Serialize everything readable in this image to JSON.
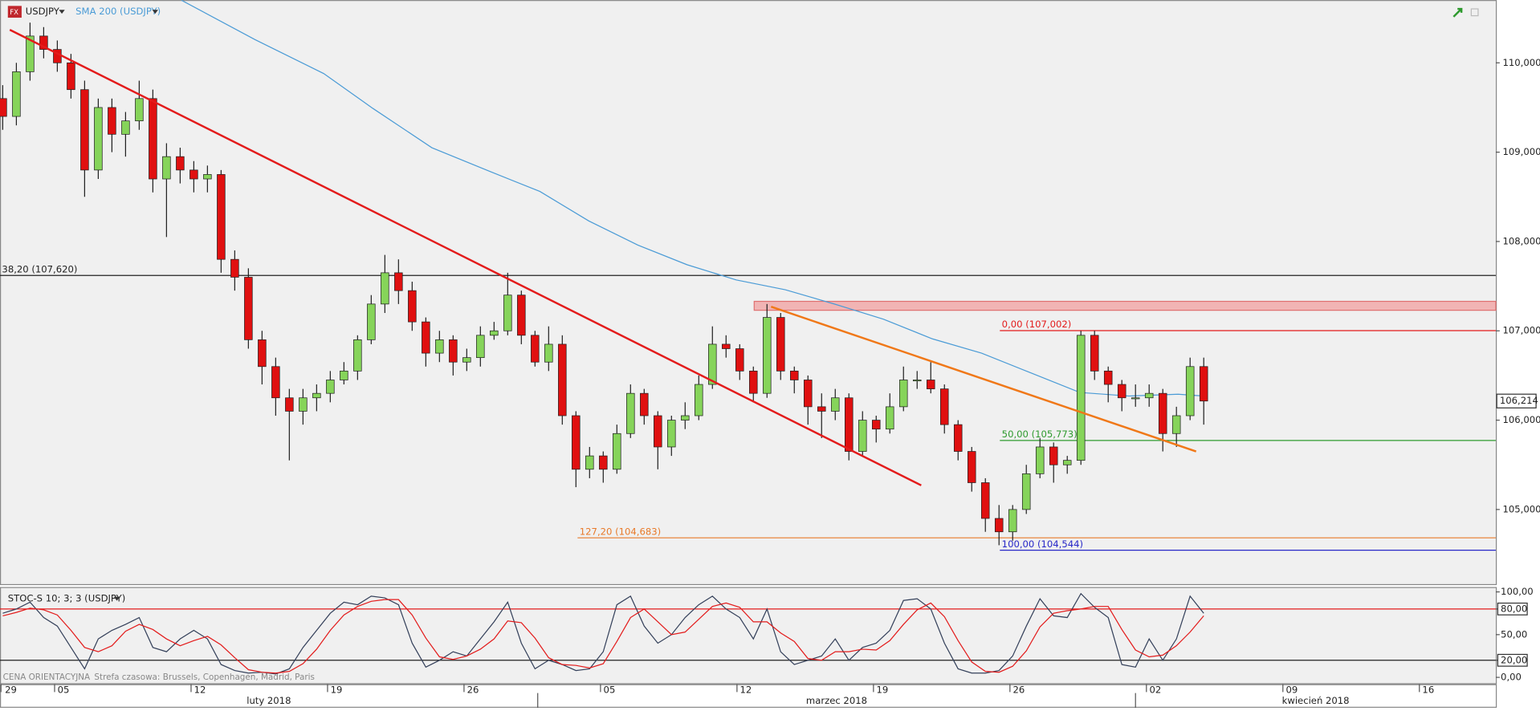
{
  "chart_data": [
    {
      "type": "candlestick",
      "symbol": "USDJPY",
      "up_color": "#86d45a",
      "down_color": "#e01010",
      "grid": false,
      "ylim": [
        104.165,
        110.703
      ],
      "xlim": [
        -0.1,
        54.7
      ],
      "yticks": [
        {
          "value": 110,
          "label": "110,000"
        },
        {
          "value": 109,
          "label": "109,000"
        },
        {
          "value": 108,
          "label": "108,000"
        },
        {
          "value": 107,
          "label": "107,000"
        },
        {
          "value": 106,
          "label": "106,000"
        },
        {
          "value": 105,
          "label": "105,000"
        }
      ],
      "xticks": [
        {
          "value": -3.1,
          "label": "29"
        },
        {
          "value": 1.9,
          "label": "05"
        },
        {
          "value": 6.9,
          "label": "12"
        },
        {
          "value": 11.9,
          "label": "19"
        },
        {
          "value": 16.9,
          "label": "26"
        },
        {
          "value": 21.9,
          "label": "05"
        },
        {
          "value": 26.9,
          "label": "12"
        },
        {
          "value": 31.9,
          "label": "19"
        },
        {
          "value": 36.9,
          "label": "26"
        },
        {
          "value": 41.9,
          "label": "02"
        },
        {
          "value": 46.9,
          "label": "09"
        },
        {
          "value": 51.9,
          "label": "16"
        }
      ],
      "months": [
        "luty 2018",
        "marzec 2018",
        "kwiecień 2018"
      ],
      "month_bounds": [
        19.6,
        41.5
      ],
      "last_price": {
        "value": 106.214,
        "label": "106,214"
      },
      "x": [
        0,
        0.5,
        1,
        1.5,
        2,
        2.5,
        3,
        3.5,
        4,
        4.5,
        5,
        5.5,
        6,
        6.5,
        7,
        7.5,
        8,
        8.5,
        9,
        9.5,
        10,
        10.5,
        11,
        11.5,
        12,
        12.5,
        13,
        13.5,
        14,
        14.5,
        15,
        15.5,
        16,
        16.5,
        17,
        17.5,
        18,
        18.5,
        19,
        19.5,
        20,
        20.5,
        21,
        21.5,
        22,
        22.5,
        23,
        23.5,
        24,
        24.5,
        25,
        25.5,
        26,
        26.5,
        27,
        27.5,
        28,
        28.5,
        29,
        29.5,
        30,
        30.5,
        31,
        31.5,
        32,
        32.5,
        33,
        33.5,
        34,
        34.5,
        35,
        35.5,
        36,
        36.5,
        37,
        37.5,
        38,
        38.5,
        39,
        39.5,
        40,
        40.5,
        41,
        41.5,
        42,
        42.5,
        43,
        43.5,
        44
      ],
      "ohlc": [
        [
          109.6,
          109.75,
          109.25,
          109.4
        ],
        [
          109.4,
          110.0,
          109.3,
          109.9
        ],
        [
          109.9,
          110.45,
          109.8,
          110.3
        ],
        [
          110.3,
          110.4,
          110.05,
          110.15
        ],
        [
          110.15,
          110.25,
          109.9,
          110.0
        ],
        [
          110.0,
          110.1,
          109.6,
          109.7
        ],
        [
          109.7,
          109.8,
          108.5,
          108.8
        ],
        [
          108.8,
          109.6,
          108.7,
          109.5
        ],
        [
          109.5,
          109.6,
          109.0,
          109.2
        ],
        [
          109.2,
          109.45,
          108.95,
          109.35
        ],
        [
          109.35,
          109.8,
          109.25,
          109.6
        ],
        [
          109.6,
          109.7,
          108.55,
          108.7
        ],
        [
          108.7,
          109.1,
          108.05,
          108.95
        ],
        [
          108.95,
          109.05,
          108.65,
          108.8
        ],
        [
          108.8,
          108.9,
          108.55,
          108.7
        ],
        [
          108.7,
          108.85,
          108.55,
          108.75
        ],
        [
          108.75,
          108.8,
          107.65,
          107.8
        ],
        [
          107.8,
          107.9,
          107.45,
          107.6
        ],
        [
          107.6,
          107.7,
          106.8,
          106.9
        ],
        [
          106.9,
          107.0,
          106.4,
          106.6
        ],
        [
          106.6,
          106.7,
          106.05,
          106.25
        ],
        [
          106.25,
          106.35,
          105.55,
          106.1
        ],
        [
          106.1,
          106.35,
          105.95,
          106.25
        ],
        [
          106.25,
          106.4,
          106.1,
          106.3
        ],
        [
          106.3,
          106.55,
          106.2,
          106.45
        ],
        [
          106.45,
          106.65,
          106.4,
          106.55
        ],
        [
          106.55,
          106.95,
          106.45,
          106.9
        ],
        [
          106.9,
          107.4,
          106.85,
          107.3
        ],
        [
          107.3,
          107.85,
          107.2,
          107.65
        ],
        [
          107.65,
          107.8,
          107.3,
          107.45
        ],
        [
          107.45,
          107.55,
          107.0,
          107.1
        ],
        [
          107.1,
          107.15,
          106.6,
          106.75
        ],
        [
          106.75,
          107.0,
          106.65,
          106.9
        ],
        [
          106.9,
          106.95,
          106.5,
          106.65
        ],
        [
          106.65,
          106.8,
          106.55,
          106.7
        ],
        [
          106.7,
          107.05,
          106.6,
          106.95
        ],
        [
          106.95,
          107.1,
          106.9,
          107.0
        ],
        [
          107.0,
          107.65,
          106.95,
          107.4
        ],
        [
          107.4,
          107.45,
          106.85,
          106.95
        ],
        [
          106.95,
          107.0,
          106.6,
          106.65
        ],
        [
          106.65,
          107.05,
          106.55,
          106.85
        ],
        [
          106.85,
          106.95,
          105.95,
          106.05
        ],
        [
          106.05,
          106.1,
          105.25,
          105.45
        ],
        [
          105.45,
          105.7,
          105.35,
          105.6
        ],
        [
          105.6,
          105.65,
          105.3,
          105.45
        ],
        [
          105.45,
          105.95,
          105.4,
          105.85
        ],
        [
          105.85,
          106.4,
          105.8,
          106.3
        ],
        [
          106.3,
          106.35,
          105.95,
          106.05
        ],
        [
          106.05,
          106.1,
          105.45,
          105.7
        ],
        [
          105.7,
          106.05,
          105.6,
          106.0
        ],
        [
          106.0,
          106.2,
          105.9,
          106.05
        ],
        [
          106.05,
          106.5,
          106.0,
          106.4
        ],
        [
          106.4,
          107.05,
          106.35,
          106.85
        ],
        [
          106.85,
          106.95,
          106.7,
          106.8
        ],
        [
          106.8,
          106.85,
          106.45,
          106.55
        ],
        [
          106.55,
          106.6,
          106.2,
          106.3
        ],
        [
          106.3,
          107.3,
          106.25,
          107.15
        ],
        [
          107.15,
          107.2,
          106.45,
          106.55
        ],
        [
          106.55,
          106.6,
          106.3,
          106.45
        ],
        [
          106.45,
          106.5,
          105.95,
          106.15
        ],
        [
          106.15,
          106.3,
          105.8,
          106.1
        ],
        [
          106.1,
          106.35,
          106.0,
          106.25
        ],
        [
          106.25,
          106.3,
          105.55,
          105.65
        ],
        [
          105.65,
          106.1,
          105.6,
          106.0
        ],
        [
          106.0,
          106.05,
          105.75,
          105.9
        ],
        [
          105.9,
          106.3,
          105.85,
          106.15
        ],
        [
          106.15,
          106.6,
          106.1,
          106.45
        ],
        [
          106.45,
          106.55,
          106.35,
          106.45
        ],
        [
          106.45,
          106.65,
          106.3,
          106.35
        ],
        [
          106.35,
          106.4,
          105.85,
          105.95
        ],
        [
          105.95,
          106.0,
          105.55,
          105.65
        ],
        [
          105.65,
          105.7,
          105.2,
          105.3
        ],
        [
          105.3,
          105.35,
          104.75,
          104.9
        ],
        [
          104.9,
          105.05,
          104.6,
          104.75
        ],
        [
          104.75,
          105.05,
          104.65,
          105.0
        ],
        [
          105.0,
          105.5,
          104.95,
          105.4
        ],
        [
          105.4,
          105.8,
          105.35,
          105.7
        ],
        [
          105.7,
          105.75,
          105.3,
          105.5
        ],
        [
          105.5,
          105.6,
          105.4,
          105.55
        ],
        [
          105.55,
          107.0,
          105.5,
          106.95
        ],
        [
          106.95,
          107.0,
          106.45,
          106.55
        ],
        [
          106.55,
          106.6,
          106.2,
          106.4
        ],
        [
          106.4,
          106.45,
          106.1,
          106.25
        ],
        [
          106.25,
          106.4,
          106.15,
          106.25
        ],
        [
          106.25,
          106.4,
          106.15,
          106.3
        ],
        [
          106.3,
          106.35,
          105.65,
          105.85
        ],
        [
          105.85,
          106.15,
          105.7,
          106.05
        ],
        [
          106.05,
          106.7,
          106.0,
          106.6
        ],
        [
          106.6,
          106.7,
          105.95,
          106.214
        ]
      ],
      "sma": {
        "name": "SMA 200 (USDJPY)",
        "color": "#4a9bd6",
        "x": [
          6.55,
          9.24,
          11.76,
          13.56,
          15.72,
          17.88,
          19.68,
          21.47,
          23.27,
          25.07,
          26.87,
          28.67,
          30.47,
          32.27,
          34.06,
          35.86,
          37.66,
          39.46,
          41.26,
          43.06,
          44
        ],
        "values": [
          110.7,
          110.26,
          109.88,
          109.49,
          109.05,
          108.78,
          108.56,
          108.23,
          107.96,
          107.74,
          107.57,
          107.46,
          107.3,
          107.13,
          106.91,
          106.75,
          106.53,
          106.31,
          106.27,
          106.29,
          106.27
        ]
      },
      "trendlines": [
        {
          "color": "#e31b1b",
          "x": [
            0.26,
            33.65
          ],
          "values": [
            110.37,
            105.27
          ]
        },
        {
          "color": "#f07818",
          "x": [
            28.15,
            43.72
          ],
          "values": [
            107.27,
            105.65
          ]
        }
      ],
      "zone": {
        "color": "#f2a0a0",
        "x": 27.53,
        "values": [
          107.23,
          107.33
        ]
      },
      "levels": [
        {
          "label": "38,20 (107,620)",
          "value": 107.62,
          "color": "#222222",
          "x": -0.1
        },
        {
          "label": "0,00 (107,002)",
          "value": 107.002,
          "color": "#e31b1b",
          "x": 36.53
        },
        {
          "label": "50,00 (105,773)",
          "value": 105.773,
          "color": "#2e9a2e",
          "x": 36.53
        },
        {
          "label": "127,20 (104,683)",
          "value": 104.683,
          "color": "#e87a2a",
          "x": 21.06
        },
        {
          "label": "100,00 (104,544)",
          "value": 104.544,
          "color": "#2727c8",
          "x": 36.53
        }
      ]
    },
    {
      "type": "line",
      "title": "STOC-S 10; 3; 3 (USDJPY)",
      "ylim": [
        -8,
        105.7
      ],
      "yticks": [
        {
          "value": 100,
          "label": "100,00"
        },
        {
          "value": 80,
          "label": "80,00"
        },
        {
          "value": 50,
          "label": "50,00"
        },
        {
          "value": 20,
          "label": "20,00"
        },
        {
          "value": 0,
          "label": "0,00"
        }
      ],
      "levels": [
        {
          "value": 80,
          "color": "#e31b1b"
        },
        {
          "value": 20,
          "color": "#222222"
        }
      ],
      "series": [
        {
          "color": "#34405a",
          "values": [
            75,
            80,
            88,
            70,
            60,
            35,
            10,
            45,
            55,
            62,
            70,
            35,
            30,
            45,
            55,
            45,
            15,
            8,
            5,
            6,
            4,
            10,
            35,
            55,
            75,
            88,
            85,
            95,
            93,
            85,
            40,
            12,
            20,
            30,
            25,
            45,
            65,
            88,
            40,
            10,
            20,
            15,
            8,
            10,
            30,
            85,
            95,
            60,
            40,
            50,
            70,
            85,
            95,
            80,
            70,
            45,
            80,
            30,
            15,
            20,
            25,
            45,
            20,
            35,
            40,
            55,
            90,
            92,
            80,
            40,
            10,
            5,
            5,
            8,
            25,
            60,
            92,
            72,
            70,
            98,
            82,
            70,
            15,
            12,
            45,
            20,
            45,
            95,
            75
          ]
        },
        {
          "color": "#e31b1b",
          "values": [
            72,
            76,
            81,
            79,
            73,
            55,
            35,
            30,
            37,
            54,
            62,
            56,
            45,
            37,
            43,
            48,
            38,
            23,
            9,
            6,
            5,
            7,
            16,
            33,
            55,
            73,
            83,
            89,
            91,
            91,
            73,
            46,
            24,
            21,
            25,
            33,
            45,
            66,
            64,
            46,
            23,
            15,
            14,
            11,
            16,
            42,
            70,
            80,
            65,
            50,
            53,
            68,
            83,
            87,
            82,
            65,
            65,
            52,
            42,
            22,
            20,
            30,
            30,
            33,
            32,
            43,
            62,
            79,
            87,
            71,
            43,
            18,
            7,
            6,
            13,
            31,
            59,
            75,
            78,
            80,
            83,
            83,
            56,
            32,
            24,
            26,
            37,
            53,
            72
          ]
        }
      ],
      "footer": "CENA ORIENTACYJNA",
      "timezone": "Strefa czasowa: Brussels, Copenhagen, Madrid, Paris"
    }
  ]
}
